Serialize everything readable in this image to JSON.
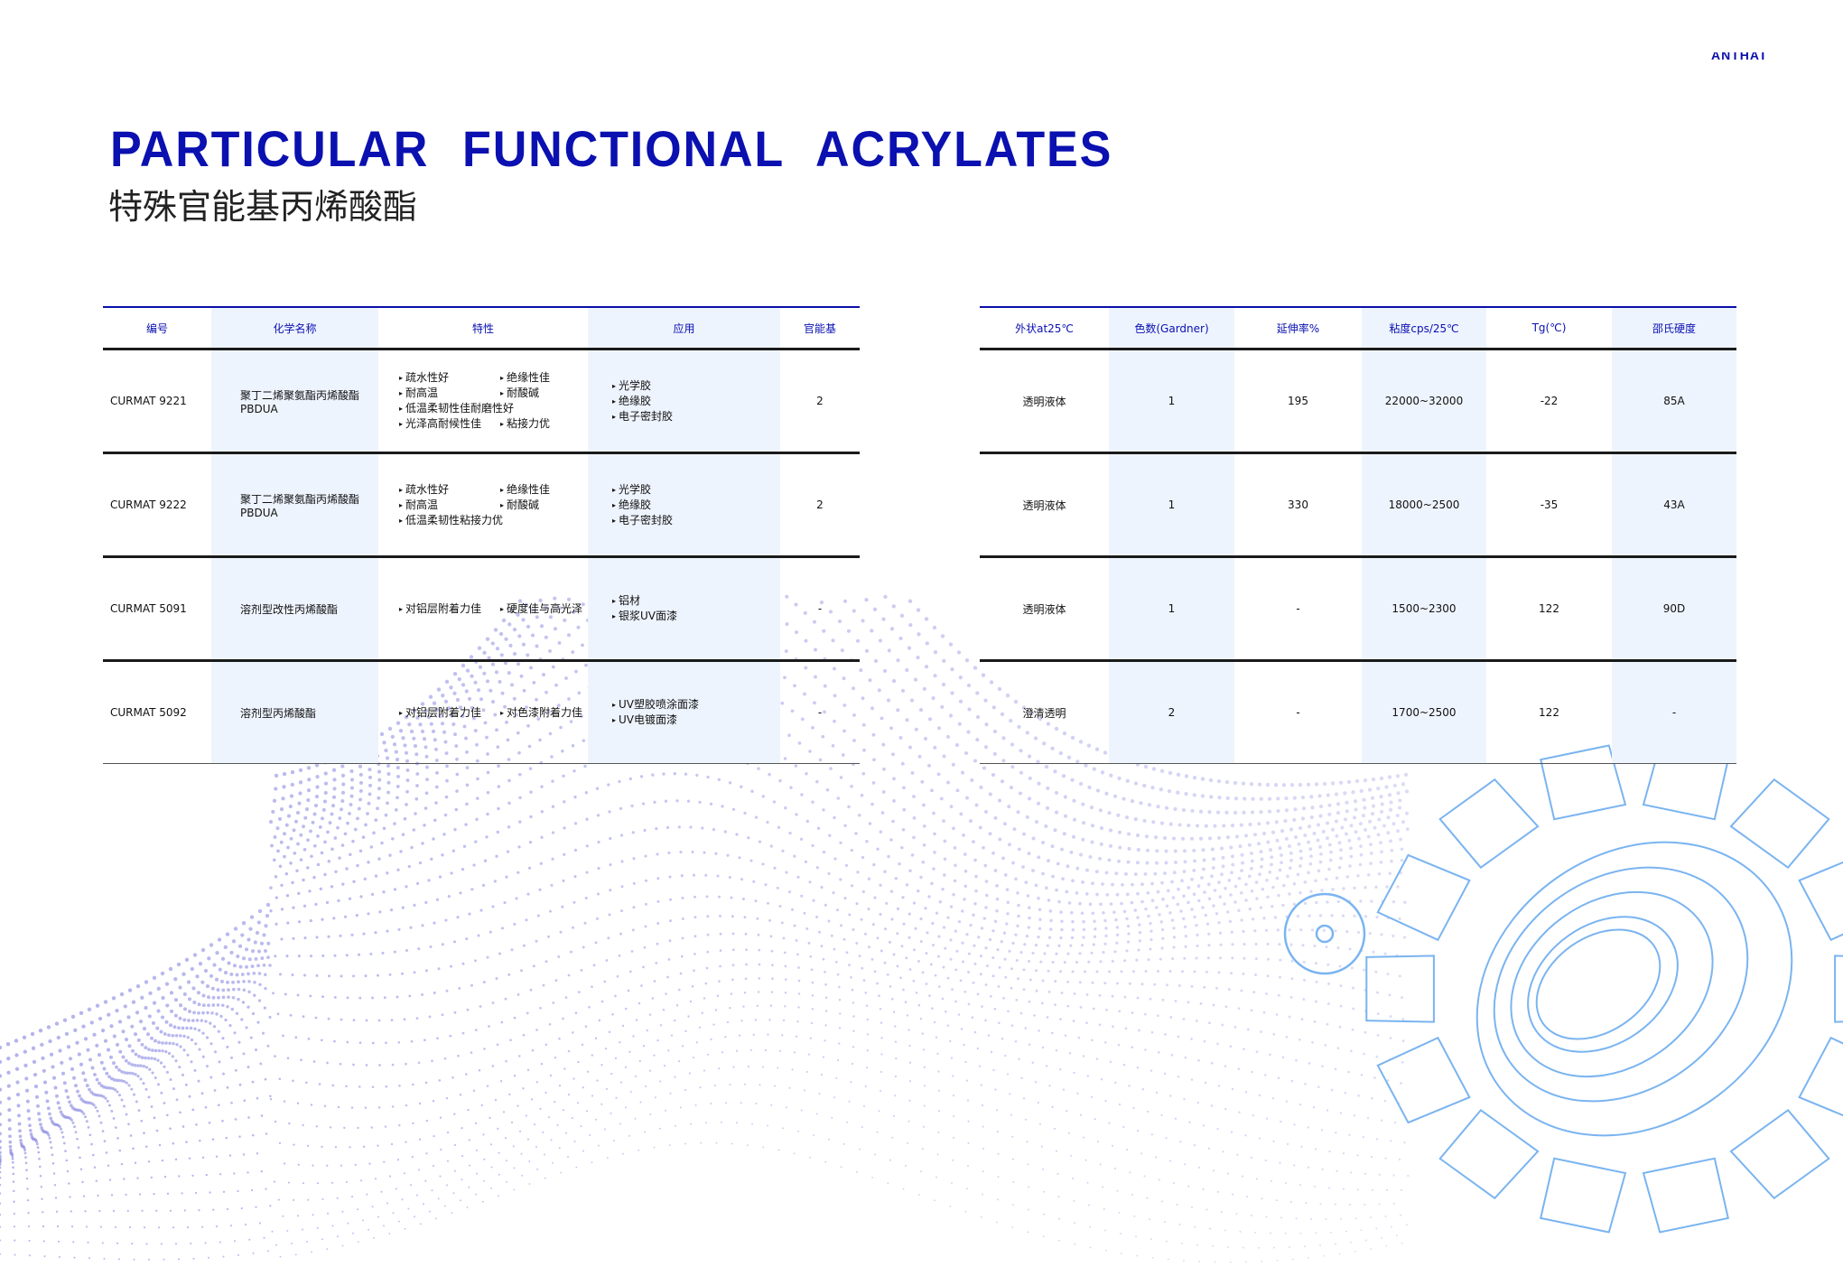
{
  "brand": "ANTHAT",
  "title_en": "PARTICULAR FUNCTIONAL ACRYLATES",
  "title_zh": "特殊官能基丙烯酸酯",
  "colors": {
    "accent": "#0b10b0",
    "shade": "#eef4fe",
    "dots": "#8f8fe0",
    "gear": "#7ab4f0"
  },
  "table_left": {
    "headers": [
      "编号",
      "化学名称",
      "特性",
      "应用",
      "官能基"
    ],
    "rows": [
      {
        "code": "CURMAT 9221",
        "name": "聚丁二烯聚氨酯丙烯酸酯PBDUA",
        "features": [
          "疏水性好",
          "绝缘性佳",
          "耐高温",
          "耐酸碱",
          "低温柔韧性佳耐磨性好",
          "光泽高耐候性佳",
          "粘接力优"
        ],
        "applications": [
          "光学胶",
          "绝缘胶",
          "电子密封胶"
        ],
        "functionality": "2"
      },
      {
        "code": "CURMAT 9222",
        "name": "聚丁二烯聚氨酯丙烯酸酯PBDUA",
        "features": [
          "疏水性好",
          "绝缘性佳",
          "耐高温",
          "耐酸碱",
          "低温柔韧性粘接力优"
        ],
        "applications": [
          "光学胶",
          "绝缘胶",
          "电子密封胶"
        ],
        "functionality": "2"
      },
      {
        "code": "CURMAT 5091",
        "name": "溶剂型改性丙烯酸酯",
        "features": [
          "对铝层附着力佳",
          "硬度佳与高光泽"
        ],
        "applications": [
          "铝材",
          "银浆UV面漆"
        ],
        "functionality": "-"
      },
      {
        "code": "CURMAT 5092",
        "name": "溶剂型丙烯酸酯",
        "features": [
          "对铝层附着力佳",
          "对色漆附着力佳"
        ],
        "applications": [
          "UV塑胶喷涂面漆",
          "UV电镀面漆"
        ],
        "functionality": "-"
      }
    ]
  },
  "table_right": {
    "headers": [
      "外状at25℃",
      "色数(Gardner)",
      "延伸率%",
      "粘度cps/25℃",
      "Tg(℃)",
      "邵氏硬度"
    ],
    "rows": [
      [
        "透明液体",
        "1",
        "195",
        "22000~32000",
        "-22",
        "85A"
      ],
      [
        "透明液体",
        "1",
        "330",
        "18000~2500",
        "-35",
        "43A"
      ],
      [
        "透明液体",
        "1",
        "-",
        "1500~2300",
        "122",
        "90D"
      ],
      [
        "澄清透明",
        "2",
        "-",
        "1700~2500",
        "122",
        "-"
      ]
    ]
  }
}
